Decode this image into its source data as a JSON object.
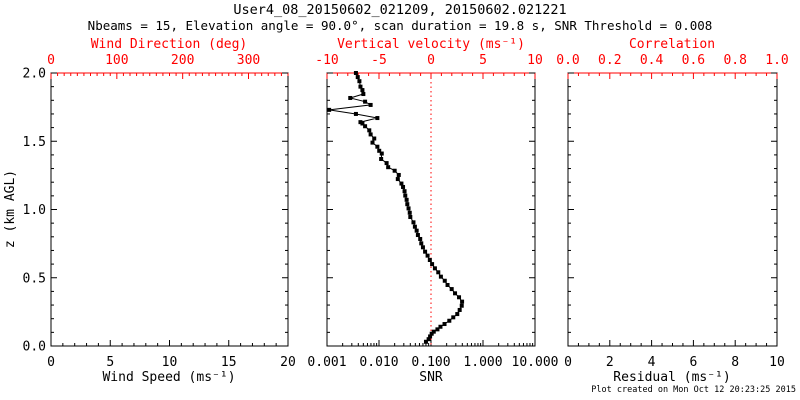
{
  "header": {
    "title": "User4_08_20150602_021209, 20150602.021221",
    "subtitle": "Nbeams = 15, Elevation angle = 90.0°, scan duration = 19.8 s, SNR Threshold = 0.008"
  },
  "footer": {
    "created": "Plot created on Mon Oct 12 20:23:25 2015"
  },
  "colors": {
    "background": "#ffffff",
    "top_axis": "#ff0000",
    "bottom_axis": "#000000",
    "data_series": "#000000",
    "zero_line": "#ff0000"
  },
  "chart_data": {
    "type": "scatter",
    "title": "User4_08_20150602_021209, 20150602.021221",
    "yaxis": {
      "label": "z (km AGL)",
      "min": 0,
      "max": 2,
      "major": 0.5,
      "minor": 0.1,
      "tick_labels": [
        "0.0",
        "0.5",
        "1.0",
        "1.5",
        "2.0"
      ],
      "tick_values": [
        0,
        0.5,
        1,
        1.5,
        2
      ]
    },
    "panels": [
      {
        "id": "wind-speed",
        "bottom_axis": {
          "title": "Wind Speed (ms⁻¹)",
          "scale": "linear",
          "min": 0,
          "max": 20,
          "major": 5,
          "minor": 1,
          "tick_labels": [
            "0",
            "5",
            "10",
            "15",
            "20"
          ],
          "tick_values": [
            0,
            5,
            10,
            15,
            20
          ]
        },
        "top_axis": {
          "title": "Wind Direction (deg)",
          "scale": "linear",
          "min": 0,
          "max": 360,
          "major": 100,
          "minor": 10,
          "tick_labels": [
            "0",
            "100",
            "200",
            "300"
          ],
          "tick_values": [
            0,
            100,
            200,
            300
          ]
        },
        "series": []
      },
      {
        "id": "snr",
        "bottom_axis": {
          "title": "SNR",
          "scale": "log",
          "min": 0.001,
          "max": 10,
          "tick_labels": [
            "0.001",
            "0.010",
            "0.100",
            "1.000",
            "10.000"
          ],
          "tick_values": [
            0.001,
            0.01,
            0.1,
            1,
            10
          ]
        },
        "top_axis": {
          "title": "Vertical velocity (ms⁻¹)",
          "scale": "linear",
          "min": -10,
          "max": 10,
          "major": 5,
          "minor": 1,
          "tick_labels": [
            "-10",
            "-5",
            "0",
            "5",
            "10"
          ],
          "tick_values": [
            -10,
            -5,
            0,
            5,
            10
          ]
        },
        "zero_line": {
          "axis": "top",
          "value": 0,
          "style": "dotted",
          "color": "#ff0000"
        },
        "series": [
          {
            "name": "snr-profile",
            "marker": "square",
            "color": "#000000",
            "x_axis": "bottom",
            "points": [
              [
                0.08,
                0.031
              ],
              [
                0.09,
                0.05
              ],
              [
                0.096,
                0.07
              ],
              [
                0.103,
                0.09
              ],
              [
                0.113,
                0.105
              ],
              [
                0.133,
                0.122
              ],
              [
                0.152,
                0.141
              ],
              [
                0.182,
                0.161
              ],
              [
                0.225,
                0.185
              ],
              [
                0.268,
                0.21
              ],
              [
                0.32,
                0.234
              ],
              [
                0.356,
                0.264
              ],
              [
                0.39,
                0.295
              ],
              [
                0.396,
                0.325
              ],
              [
                0.346,
                0.357
              ],
              [
                0.29,
                0.386
              ],
              [
                0.25,
                0.417
              ],
              [
                0.208,
                0.447
              ],
              [
                0.184,
                0.478
              ],
              [
                0.155,
                0.508
              ],
              [
                0.138,
                0.54
              ],
              [
                0.119,
                0.569
              ],
              [
                0.105,
                0.6
              ],
              [
                0.095,
                0.63
              ],
              [
                0.086,
                0.662
              ],
              [
                0.077,
                0.691
              ],
              [
                0.07,
                0.723
              ],
              [
                0.065,
                0.752
              ],
              [
                0.062,
                0.784
              ],
              [
                0.056,
                0.813
              ],
              [
                0.053,
                0.845
              ],
              [
                0.049,
                0.874
              ],
              [
                0.046,
                0.906
              ],
              [
                0.04,
                0.945
              ],
              [
                0.039,
                0.976
              ],
              [
                0.037,
                1.008
              ],
              [
                0.035,
                1.039
              ],
              [
                0.034,
                1.071
              ],
              [
                0.032,
                1.102
              ],
              [
                0.031,
                1.134
              ],
              [
                0.029,
                1.165
              ],
              [
                0.027,
                1.19
              ],
              [
                0.023,
                1.223
              ],
              [
                0.024,
                1.253
              ],
              [
                0.02,
                1.284
              ],
              [
                0.015,
                1.31
              ],
              [
                0.014,
                1.34
              ],
              [
                0.011,
                1.37
              ],
              [
                0.0113,
                1.41
              ],
              [
                0.0101,
                1.43
              ],
              [
                0.0093,
                1.46
              ],
              [
                0.0075,
                1.49
              ],
              [
                0.0081,
                1.52
              ],
              [
                0.0069,
                1.55
              ],
              [
                0.0065,
                1.58
              ],
              [
                0.0054,
                1.61
              ],
              [
                0.0048,
                1.63
              ],
              [
                0.0044,
                1.64
              ],
              [
                0.0093,
                1.67
              ],
              [
                0.0036,
                1.7
              ],
              [
                0.0011,
                1.73
              ],
              [
                0.0069,
                1.766
              ],
              [
                0.0054,
                1.79
              ],
              [
                0.0028,
                1.817
              ],
              [
                0.005,
                1.846
              ],
              [
                0.0048,
                1.875
              ],
              [
                0.0044,
                1.9
              ],
              [
                0.0042,
                1.94
              ],
              [
                0.0039,
                1.97
              ],
              [
                0.0036,
                2.0
              ]
            ]
          }
        ]
      },
      {
        "id": "residual",
        "bottom_axis": {
          "title": "Residual (ms⁻¹)",
          "scale": "linear",
          "min": 0,
          "max": 10,
          "major": 2,
          "minor": 0.5,
          "tick_labels": [
            "0",
            "2",
            "4",
            "6",
            "8",
            "10"
          ],
          "tick_values": [
            0,
            2,
            4,
            6,
            8,
            10
          ]
        },
        "top_axis": {
          "title": "Correlation",
          "scale": "linear",
          "min": 0,
          "max": 1,
          "major": 0.2,
          "minor": 0.05,
          "tick_labels": [
            "0.0",
            "0.2",
            "0.4",
            "0.6",
            "0.8",
            "1.0"
          ],
          "tick_values": [
            0,
            0.2,
            0.4,
            0.6,
            0.8,
            1
          ]
        },
        "series": []
      }
    ]
  }
}
